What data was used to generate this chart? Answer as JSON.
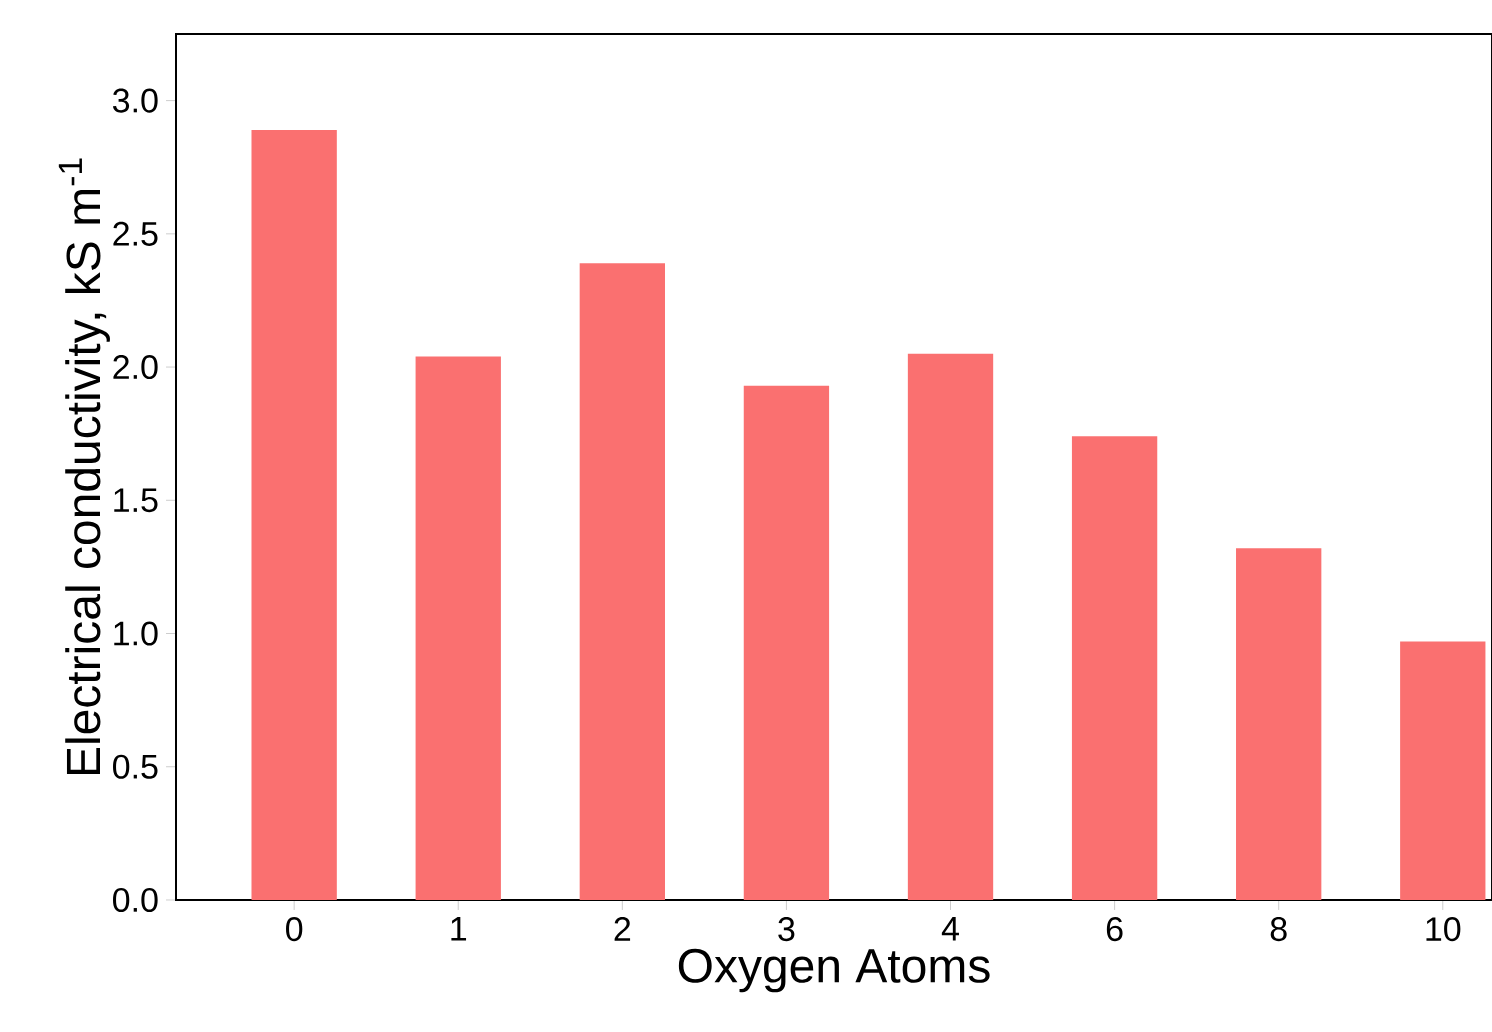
{
  "chart_data": {
    "type": "bar",
    "xlabel": "Oxygen Atoms",
    "ylabel": "Electrical conductivity, kS m$^{-1}$",
    "categories": [
      "0",
      "1",
      "2",
      "3",
      "4",
      "6",
      "8",
      "10"
    ],
    "values": [
      2.89,
      2.04,
      2.39,
      1.93,
      2.05,
      1.74,
      1.32,
      0.97
    ],
    "color": "#fa7070",
    "ylim": [
      0,
      3.25
    ],
    "yticks": [
      {
        "value": 0,
        "label": "0.0"
      },
      {
        "value": 0.5,
        "label": "0.5"
      },
      {
        "value": 1,
        "label": "1.0"
      },
      {
        "value": 1.5,
        "label": "1.5"
      },
      {
        "value": 2,
        "label": "2.0"
      },
      {
        "value": 2.5,
        "label": "2.5"
      },
      {
        "value": 3,
        "label": "3.0"
      }
    ],
    "grid": false
  }
}
